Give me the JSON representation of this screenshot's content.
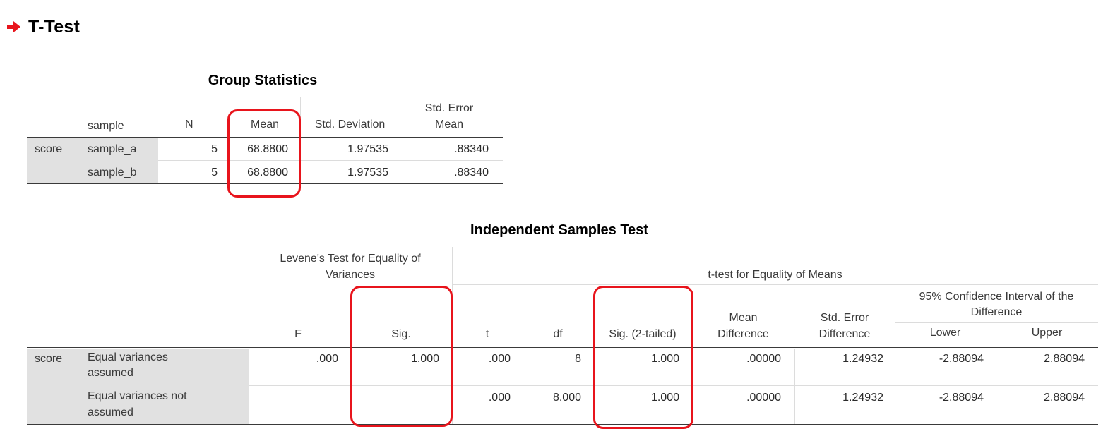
{
  "page": {
    "title": "T-Test",
    "arrow_icon": "red-right-arrow-icon",
    "highlight_color": "#e8141c"
  },
  "group_statistics": {
    "title": "Group Statistics",
    "headers": {
      "sample": "sample",
      "n": "N",
      "mean": "Mean",
      "std_dev": "Std. Deviation",
      "std_err_1": "Std. Error",
      "std_err_2": "Mean"
    },
    "variable": "score",
    "rows": [
      {
        "sample": "sample_a",
        "n": "5",
        "mean": "68.8800",
        "std_dev": "1.97535",
        "std_err": ".88340"
      },
      {
        "sample": "sample_b",
        "n": "5",
        "mean": "68.8800",
        "std_dev": "1.97535",
        "std_err": ".88340"
      }
    ]
  },
  "independent_samples_test": {
    "title": "Independent Samples Test",
    "headers": {
      "levene_1": "Levene's Test for Equality of",
      "levene_2": "Variances",
      "ttest": "t-test for Equality of Means",
      "ci_1": "95% Confidence Interval of the",
      "ci_2": "Difference",
      "f": "F",
      "sig": "Sig.",
      "t": "t",
      "df": "df",
      "sig2": "Sig. (2-tailed)",
      "md_1": "Mean",
      "md_2": "Difference",
      "sed_1": "Std. Error",
      "sed_2": "Difference",
      "lower": "Lower",
      "upper": "Upper"
    },
    "variable": "score",
    "rows": [
      {
        "label_1": "Equal variances",
        "label_2": "assumed",
        "f": ".000",
        "sig": "1.000",
        "t": ".000",
        "df": "8",
        "sig2": "1.000",
        "mean_diff": ".00000",
        "se_diff": "1.24932",
        "lower": "-2.88094",
        "upper": "2.88094"
      },
      {
        "label_1": "Equal variances not",
        "label_2": "assumed",
        "f": "",
        "sig": "",
        "t": ".000",
        "df": "8.000",
        "sig2": "1.000",
        "mean_diff": ".00000",
        "se_diff": "1.24932",
        "lower": "-2.88094",
        "upper": "2.88094"
      }
    ]
  }
}
